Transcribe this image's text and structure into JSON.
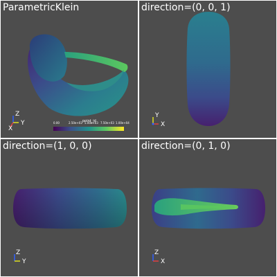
{
  "viewports": [
    {
      "title": "ParametricKlein",
      "axes": {
        "up": "Z",
        "right": "Y",
        "diag": "X"
      }
    },
    {
      "title": "direction=(0, 0, 1)",
      "axes": {
        "up": "Y",
        "right": "X"
      }
    },
    {
      "title": "direction=(1, 0, 0)",
      "axes": {
        "up": "Z",
        "right": "Y"
      }
    },
    {
      "title": "direction=(0, 1, 0)",
      "axes": {
        "up": "Z",
        "right": "X"
      }
    }
  ],
  "scalar_bar": {
    "title": "point_id",
    "ticks": [
      "0.00",
      "2.50e+03",
      "5.00e+03",
      "7.50e+03",
      "1.00e+04"
    ],
    "colormap": [
      "#440154",
      "#3b528b",
      "#21918c",
      "#5ec962",
      "#fde725"
    ]
  },
  "colors": {
    "background": "#4d4d4d",
    "surface_dark": "#3f2a6e",
    "surface_mid": "#2e6b8c",
    "surface_light": "#2a9488",
    "band": "#35b779",
    "axis_x": "#e04040",
    "axis_y": "#e0e020",
    "axis_z": "#3060ff"
  }
}
